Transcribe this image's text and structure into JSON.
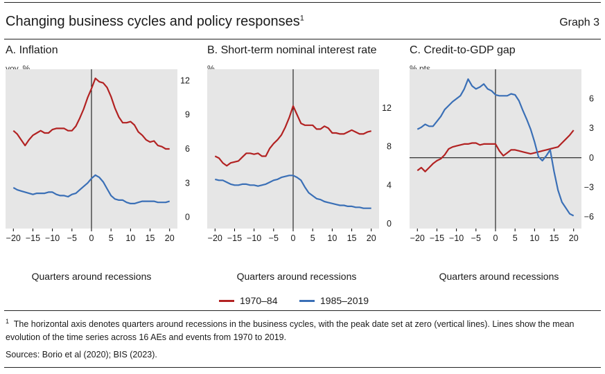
{
  "header": {
    "title": "Changing business cycles and policy responses",
    "title_footnote_marker": "1",
    "graph_label": "Graph 3"
  },
  "legend": {
    "series_a": "1970–84",
    "series_b": "1985–2019"
  },
  "colors": {
    "series_a": "#b22222",
    "series_b": "#3a6fb6",
    "panel_bg": "#e6e6e6"
  },
  "footnote": {
    "marker": "1",
    "text": "The horizontal axis denotes quarters around recessions in the business cycles, with the peak date set at zero (vertical lines). Lines show the mean evolution of the time series across 16 AEs and events from 1970 to 2019."
  },
  "sources": "Sources: Borio et al (2020); BIS (2023).",
  "chart_data": [
    {
      "type": "line",
      "title": "A. Inflation",
      "ylabel": "yoy, %",
      "xlabel": "Quarters around recessions",
      "xlim": [
        -22,
        22
      ],
      "ylim": [
        -1,
        13
      ],
      "xticks": [
        -20,
        -15,
        -10,
        -5,
        0,
        5,
        10,
        15,
        20
      ],
      "yticks": [
        0,
        3,
        6,
        9,
        12
      ],
      "grid": false,
      "series": [
        {
          "name": "1970–84",
          "x": [
            -20,
            -19,
            -18,
            -17,
            -16,
            -15,
            -14,
            -13,
            -12,
            -11,
            -10,
            -9,
            -8,
            -7,
            -6,
            -5,
            -4,
            -3,
            -2,
            -1,
            0,
            1,
            2,
            3,
            4,
            5,
            6,
            7,
            8,
            9,
            10,
            11,
            12,
            13,
            14,
            15,
            16,
            17,
            18,
            19,
            20
          ],
          "y": [
            7.6,
            7.3,
            6.8,
            6.3,
            6.8,
            7.2,
            7.4,
            7.6,
            7.4,
            7.4,
            7.7,
            7.8,
            7.8,
            7.8,
            7.6,
            7.6,
            8.0,
            8.7,
            9.5,
            10.5,
            11.3,
            12.2,
            11.9,
            11.8,
            11.4,
            10.6,
            9.6,
            8.8,
            8.3,
            8.3,
            8.4,
            8.1,
            7.5,
            7.2,
            6.8,
            6.6,
            6.7,
            6.3,
            6.2,
            6.0,
            6.0
          ]
        },
        {
          "name": "1985–2019",
          "x": [
            -20,
            -19,
            -18,
            -17,
            -16,
            -15,
            -14,
            -13,
            -12,
            -11,
            -10,
            -9,
            -8,
            -7,
            -6,
            -5,
            -4,
            -3,
            -2,
            -1,
            0,
            1,
            2,
            3,
            4,
            5,
            6,
            7,
            8,
            9,
            10,
            11,
            12,
            13,
            14,
            15,
            16,
            17,
            18,
            19,
            20
          ],
          "y": [
            2.6,
            2.4,
            2.3,
            2.2,
            2.1,
            2.0,
            2.1,
            2.1,
            2.1,
            2.2,
            2.2,
            2.0,
            1.9,
            1.9,
            1.8,
            2.0,
            2.1,
            2.4,
            2.7,
            3.0,
            3.4,
            3.7,
            3.5,
            3.1,
            2.5,
            1.9,
            1.6,
            1.5,
            1.5,
            1.3,
            1.2,
            1.2,
            1.3,
            1.4,
            1.4,
            1.4,
            1.4,
            1.3,
            1.3,
            1.3,
            1.4
          ]
        }
      ]
    },
    {
      "type": "line",
      "title": "B. Short-term nominal interest rate",
      "ylabel": "%",
      "xlabel": "Quarters around recessions",
      "xlim": [
        -22,
        22
      ],
      "ylim": [
        -0.5,
        16
      ],
      "xticks": [
        -20,
        -15,
        -10,
        -5,
        0,
        5,
        10,
        15,
        20
      ],
      "yticks": [
        0,
        4,
        8,
        12
      ],
      "grid": false,
      "series": [
        {
          "name": "1970–84",
          "x": [
            -20,
            -19,
            -18,
            -17,
            -16,
            -15,
            -14,
            -13,
            -12,
            -11,
            -10,
            -9,
            -8,
            -7,
            -6,
            -5,
            -4,
            -3,
            -2,
            -1,
            0,
            1,
            2,
            3,
            4,
            5,
            6,
            7,
            8,
            9,
            10,
            11,
            12,
            13,
            14,
            15,
            16,
            17,
            18,
            19,
            20
          ],
          "y": [
            7.0,
            6.8,
            6.3,
            6.0,
            6.3,
            6.4,
            6.5,
            6.9,
            7.3,
            7.3,
            7.2,
            7.3,
            7.0,
            7.0,
            7.8,
            8.3,
            8.7,
            9.2,
            10.0,
            11.0,
            12.2,
            11.3,
            10.4,
            10.2,
            10.2,
            10.2,
            9.8,
            9.8,
            10.1,
            9.9,
            9.4,
            9.4,
            9.3,
            9.3,
            9.5,
            9.7,
            9.5,
            9.3,
            9.3,
            9.5,
            9.6
          ]
        },
        {
          "name": "1985–2019",
          "x": [
            -20,
            -19,
            -18,
            -17,
            -16,
            -15,
            -14,
            -13,
            -12,
            -11,
            -10,
            -9,
            -8,
            -7,
            -6,
            -5,
            -4,
            -3,
            -2,
            -1,
            0,
            1,
            2,
            3,
            4,
            5,
            6,
            7,
            8,
            9,
            10,
            11,
            12,
            13,
            14,
            15,
            16,
            17,
            18,
            19,
            20
          ],
          "y": [
            4.6,
            4.5,
            4.5,
            4.3,
            4.1,
            4.0,
            4.0,
            4.1,
            4.1,
            4.0,
            4.0,
            3.9,
            4.0,
            4.1,
            4.3,
            4.5,
            4.6,
            4.8,
            4.9,
            5.0,
            5.0,
            4.8,
            4.5,
            3.8,
            3.2,
            2.9,
            2.6,
            2.5,
            2.3,
            2.2,
            2.1,
            2.0,
            1.9,
            1.9,
            1.8,
            1.8,
            1.7,
            1.7,
            1.6,
            1.6,
            1.6
          ]
        }
      ]
    },
    {
      "type": "line",
      "title": "C. Credit-to-GDP gap",
      "ylabel": "% pts",
      "xlabel": "Quarters around recessions",
      "xlim": [
        -22,
        22
      ],
      "ylim": [
        -7.2,
        9
      ],
      "xticks": [
        -20,
        -15,
        -10,
        -5,
        0,
        5,
        10,
        15,
        20
      ],
      "yticks": [
        -6,
        -3,
        0,
        3,
        6
      ],
      "grid": false,
      "series": [
        {
          "name": "1970–84",
          "x": [
            -20,
            -19,
            -18,
            -17,
            -16,
            -15,
            -14,
            -13,
            -12,
            -11,
            -10,
            -9,
            -8,
            -7,
            -6,
            -5,
            -4,
            -3,
            -2,
            -1,
            0,
            1,
            2,
            3,
            4,
            5,
            6,
            7,
            8,
            9,
            10,
            11,
            12,
            13,
            14,
            15,
            16,
            17,
            18,
            19,
            20
          ],
          "y": [
            -1.3,
            -1.0,
            -1.4,
            -1.0,
            -0.6,
            -0.3,
            -0.1,
            0.3,
            0.9,
            1.1,
            1.2,
            1.3,
            1.4,
            1.4,
            1.5,
            1.5,
            1.3,
            1.4,
            1.4,
            1.4,
            1.4,
            0.7,
            0.2,
            0.5,
            0.8,
            0.8,
            0.7,
            0.6,
            0.5,
            0.4,
            0.5,
            0.6,
            0.7,
            0.8,
            0.9,
            1.0,
            1.1,
            1.5,
            1.9,
            2.3,
            2.8
          ]
        },
        {
          "name": "1985–2019",
          "x": [
            -20,
            -19,
            -18,
            -17,
            -16,
            -15,
            -14,
            -13,
            -12,
            -11,
            -10,
            -9,
            -8,
            -7,
            -6,
            -5,
            -4,
            -3,
            -2,
            -1,
            0,
            1,
            2,
            3,
            4,
            5,
            6,
            7,
            8,
            9,
            10,
            11,
            12,
            13,
            14,
            15,
            16,
            17,
            18,
            19,
            20
          ],
          "y": [
            2.9,
            3.1,
            3.4,
            3.2,
            3.2,
            3.7,
            4.2,
            4.9,
            5.3,
            5.7,
            6.0,
            6.3,
            7.0,
            8.0,
            7.3,
            7.0,
            7.2,
            7.5,
            7.0,
            6.8,
            6.4,
            6.3,
            6.3,
            6.3,
            6.5,
            6.4,
            5.8,
            4.8,
            3.9,
            2.9,
            1.6,
            0.1,
            -0.3,
            0.2,
            0.8,
            -1.4,
            -3.3,
            -4.5,
            -5.1,
            -5.7,
            -5.9
          ]
        }
      ]
    }
  ]
}
